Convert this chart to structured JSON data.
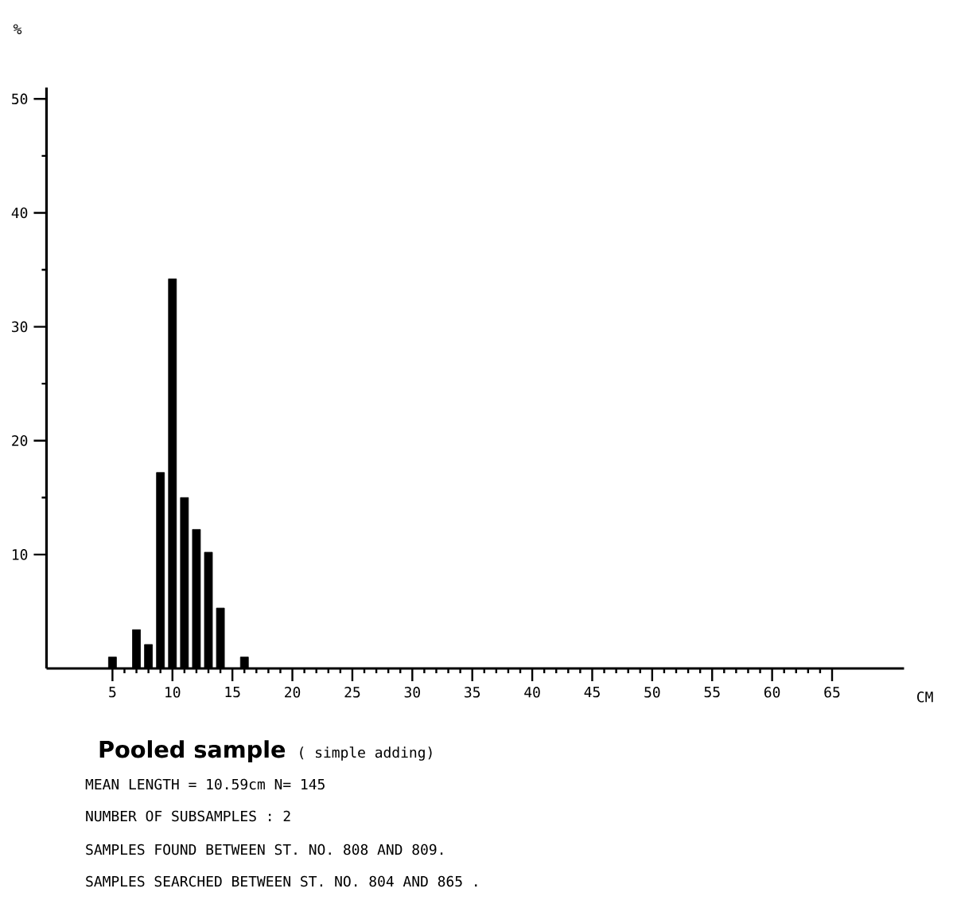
{
  "chart_data": {
    "type": "bar",
    "title": "Pooled sample",
    "subtitle": "( simple adding)",
    "xlabel": "CM",
    "ylabel": "%",
    "x": [
      5,
      7,
      8,
      9,
      10,
      11,
      12,
      13,
      14,
      16
    ],
    "values": [
      1.0,
      3.4,
      2.1,
      17.2,
      34.2,
      15.0,
      12.2,
      10.2,
      5.3,
      1.0
    ],
    "color": "#000000",
    "xlim": [
      -0.5,
      71
    ],
    "ylim": [
      0,
      51
    ],
    "xticks": [
      5,
      10,
      15,
      20,
      25,
      30,
      35,
      40,
      45,
      50,
      55,
      60,
      65
    ],
    "yticks": [
      10,
      20,
      30,
      40,
      50
    ],
    "annotations": [
      "MEAN LENGTH = 10.59cm  N= 145",
      "NUMBER OF SUBSAMPLES :  2",
      "SAMPLES FOUND BETWEEN ST. NO. 808 AND  809.",
      "SAMPLES SEARCHED BETWEEN ST. NO. 804 AND  865 ."
    ]
  }
}
